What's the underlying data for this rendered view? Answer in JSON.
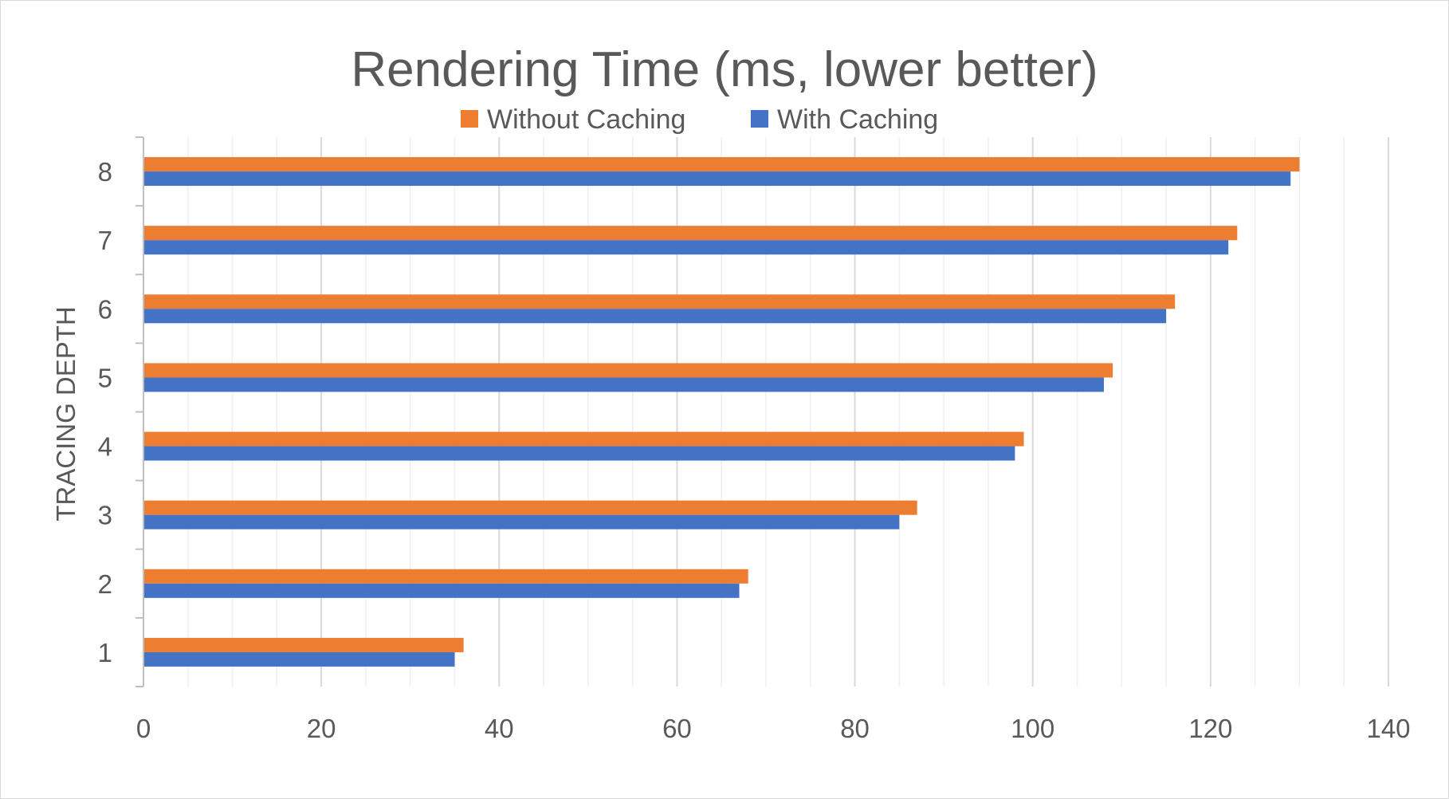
{
  "chart_data": {
    "type": "bar",
    "orientation": "horizontal",
    "title": "Rendering Time (ms, lower better)",
    "ylabel": "TRACING DEPTH",
    "xlabel": "",
    "categories": [
      "1",
      "2",
      "3",
      "4",
      "5",
      "6",
      "7",
      "8"
    ],
    "series": [
      {
        "name": "Without Caching",
        "color": "#ED7D31",
        "values": [
          36,
          68,
          87,
          99,
          109,
          116,
          123,
          130
        ]
      },
      {
        "name": "With Caching",
        "color": "#4472C4",
        "values": [
          35,
          67,
          85,
          98,
          108,
          115,
          122,
          129
        ]
      }
    ],
    "xlim": [
      0,
      140
    ],
    "xticks": [
      0,
      20,
      40,
      60,
      80,
      100,
      120,
      140
    ],
    "major_gridlines": true,
    "minor_gridlines": true,
    "legend_position": "top"
  }
}
